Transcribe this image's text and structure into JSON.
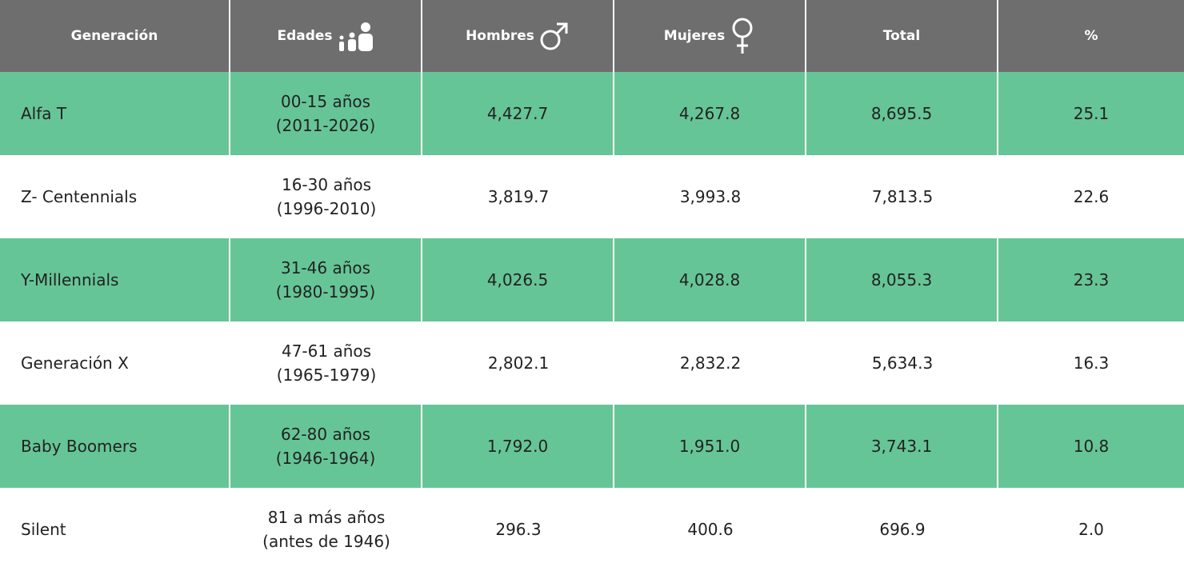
{
  "table": {
    "headers": [
      "Generación",
      "Edades",
      "Hombres",
      "Mujeres",
      "Total",
      "%"
    ],
    "rows": [
      [
        "Alfa T",
        [
          "00-15 años",
          "(2011-2026)"
        ],
        "4,427.7",
        "4,267.8",
        "8,695.5",
        "25.1"
      ],
      [
        "Z- Centennials",
        [
          "16-30 años",
          "(1996-2010)"
        ],
        "3,819.7",
        "3,993.8",
        "7,813.5",
        "22.6"
      ],
      [
        "Y-Millennials",
        [
          "31-46 años",
          "(1980-1995)"
        ],
        "4,026.5",
        "4,028.8",
        "8,055.3",
        "23.3"
      ],
      [
        "Generación X",
        [
          "47-61 años",
          "(1965-1979)"
        ],
        "2,802.1",
        "2,832.2",
        "5,634.3",
        "16.3"
      ],
      [
        "Baby Boomers",
        [
          "62-80 años",
          "(1946-1964)"
        ],
        "1,792.0",
        "1,951.0",
        "3,743.1",
        "10.8"
      ],
      [
        "Silent",
        [
          "81 a más años",
          "(antes de 1946)"
        ],
        "296.3",
        "400.6",
        "696.9",
        "2.0"
      ]
    ]
  }
}
